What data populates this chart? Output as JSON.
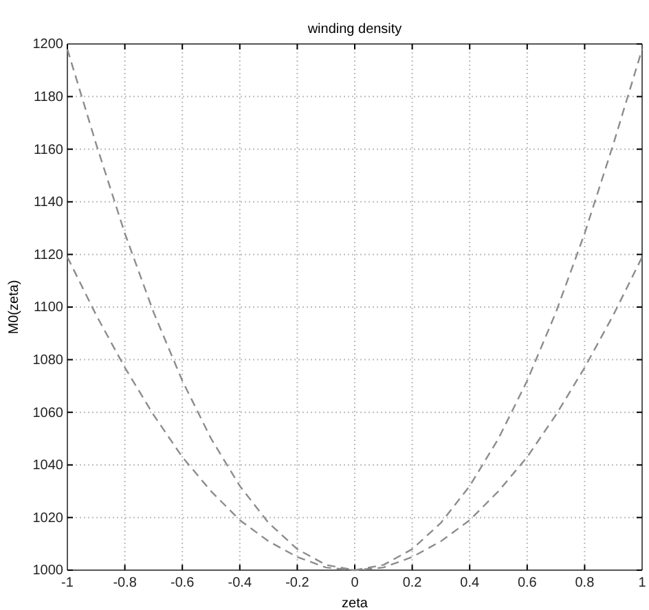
{
  "chart_data": {
    "type": "line",
    "title": "winding density",
    "xlabel": "zeta",
    "ylabel": "M0(zeta)",
    "x": [
      -1,
      -0.9,
      -0.8,
      -0.7,
      -0.6,
      -0.5,
      -0.4,
      -0.3,
      -0.2,
      -0.1,
      0,
      0.1,
      0.2,
      0.3,
      0.4,
      0.5,
      0.6,
      0.7,
      0.8,
      0.9,
      1
    ],
    "series": [
      {
        "color": "#8c8c8c",
        "values": [
          1198,
          1162,
          1128,
          1098,
          1072,
          1050,
          1032,
          1018,
          1008,
          1002,
          1000,
          1002,
          1008,
          1018,
          1032,
          1050,
          1072,
          1098,
          1128,
          1162,
          1198
        ]
      },
      {
        "color": "#8c8c8c",
        "values": [
          1119,
          1097,
          1077,
          1059,
          1043,
          1030,
          1019,
          1011,
          1005,
          1001,
          1000,
          1001,
          1005,
          1011,
          1019,
          1030,
          1043,
          1059,
          1077,
          1097,
          1119
        ]
      }
    ],
    "xlim": [
      -1,
      1
    ],
    "ylim": [
      1000,
      1200
    ],
    "xticks": [
      -1,
      -0.8,
      -0.6,
      -0.4,
      -0.2,
      0,
      0.2,
      0.4,
      0.6,
      0.8,
      1
    ],
    "yticks": [
      1000,
      1020,
      1040,
      1060,
      1080,
      1100,
      1120,
      1140,
      1160,
      1180,
      1200
    ],
    "grid": true,
    "line_style": "dashed",
    "marker": "none"
  }
}
